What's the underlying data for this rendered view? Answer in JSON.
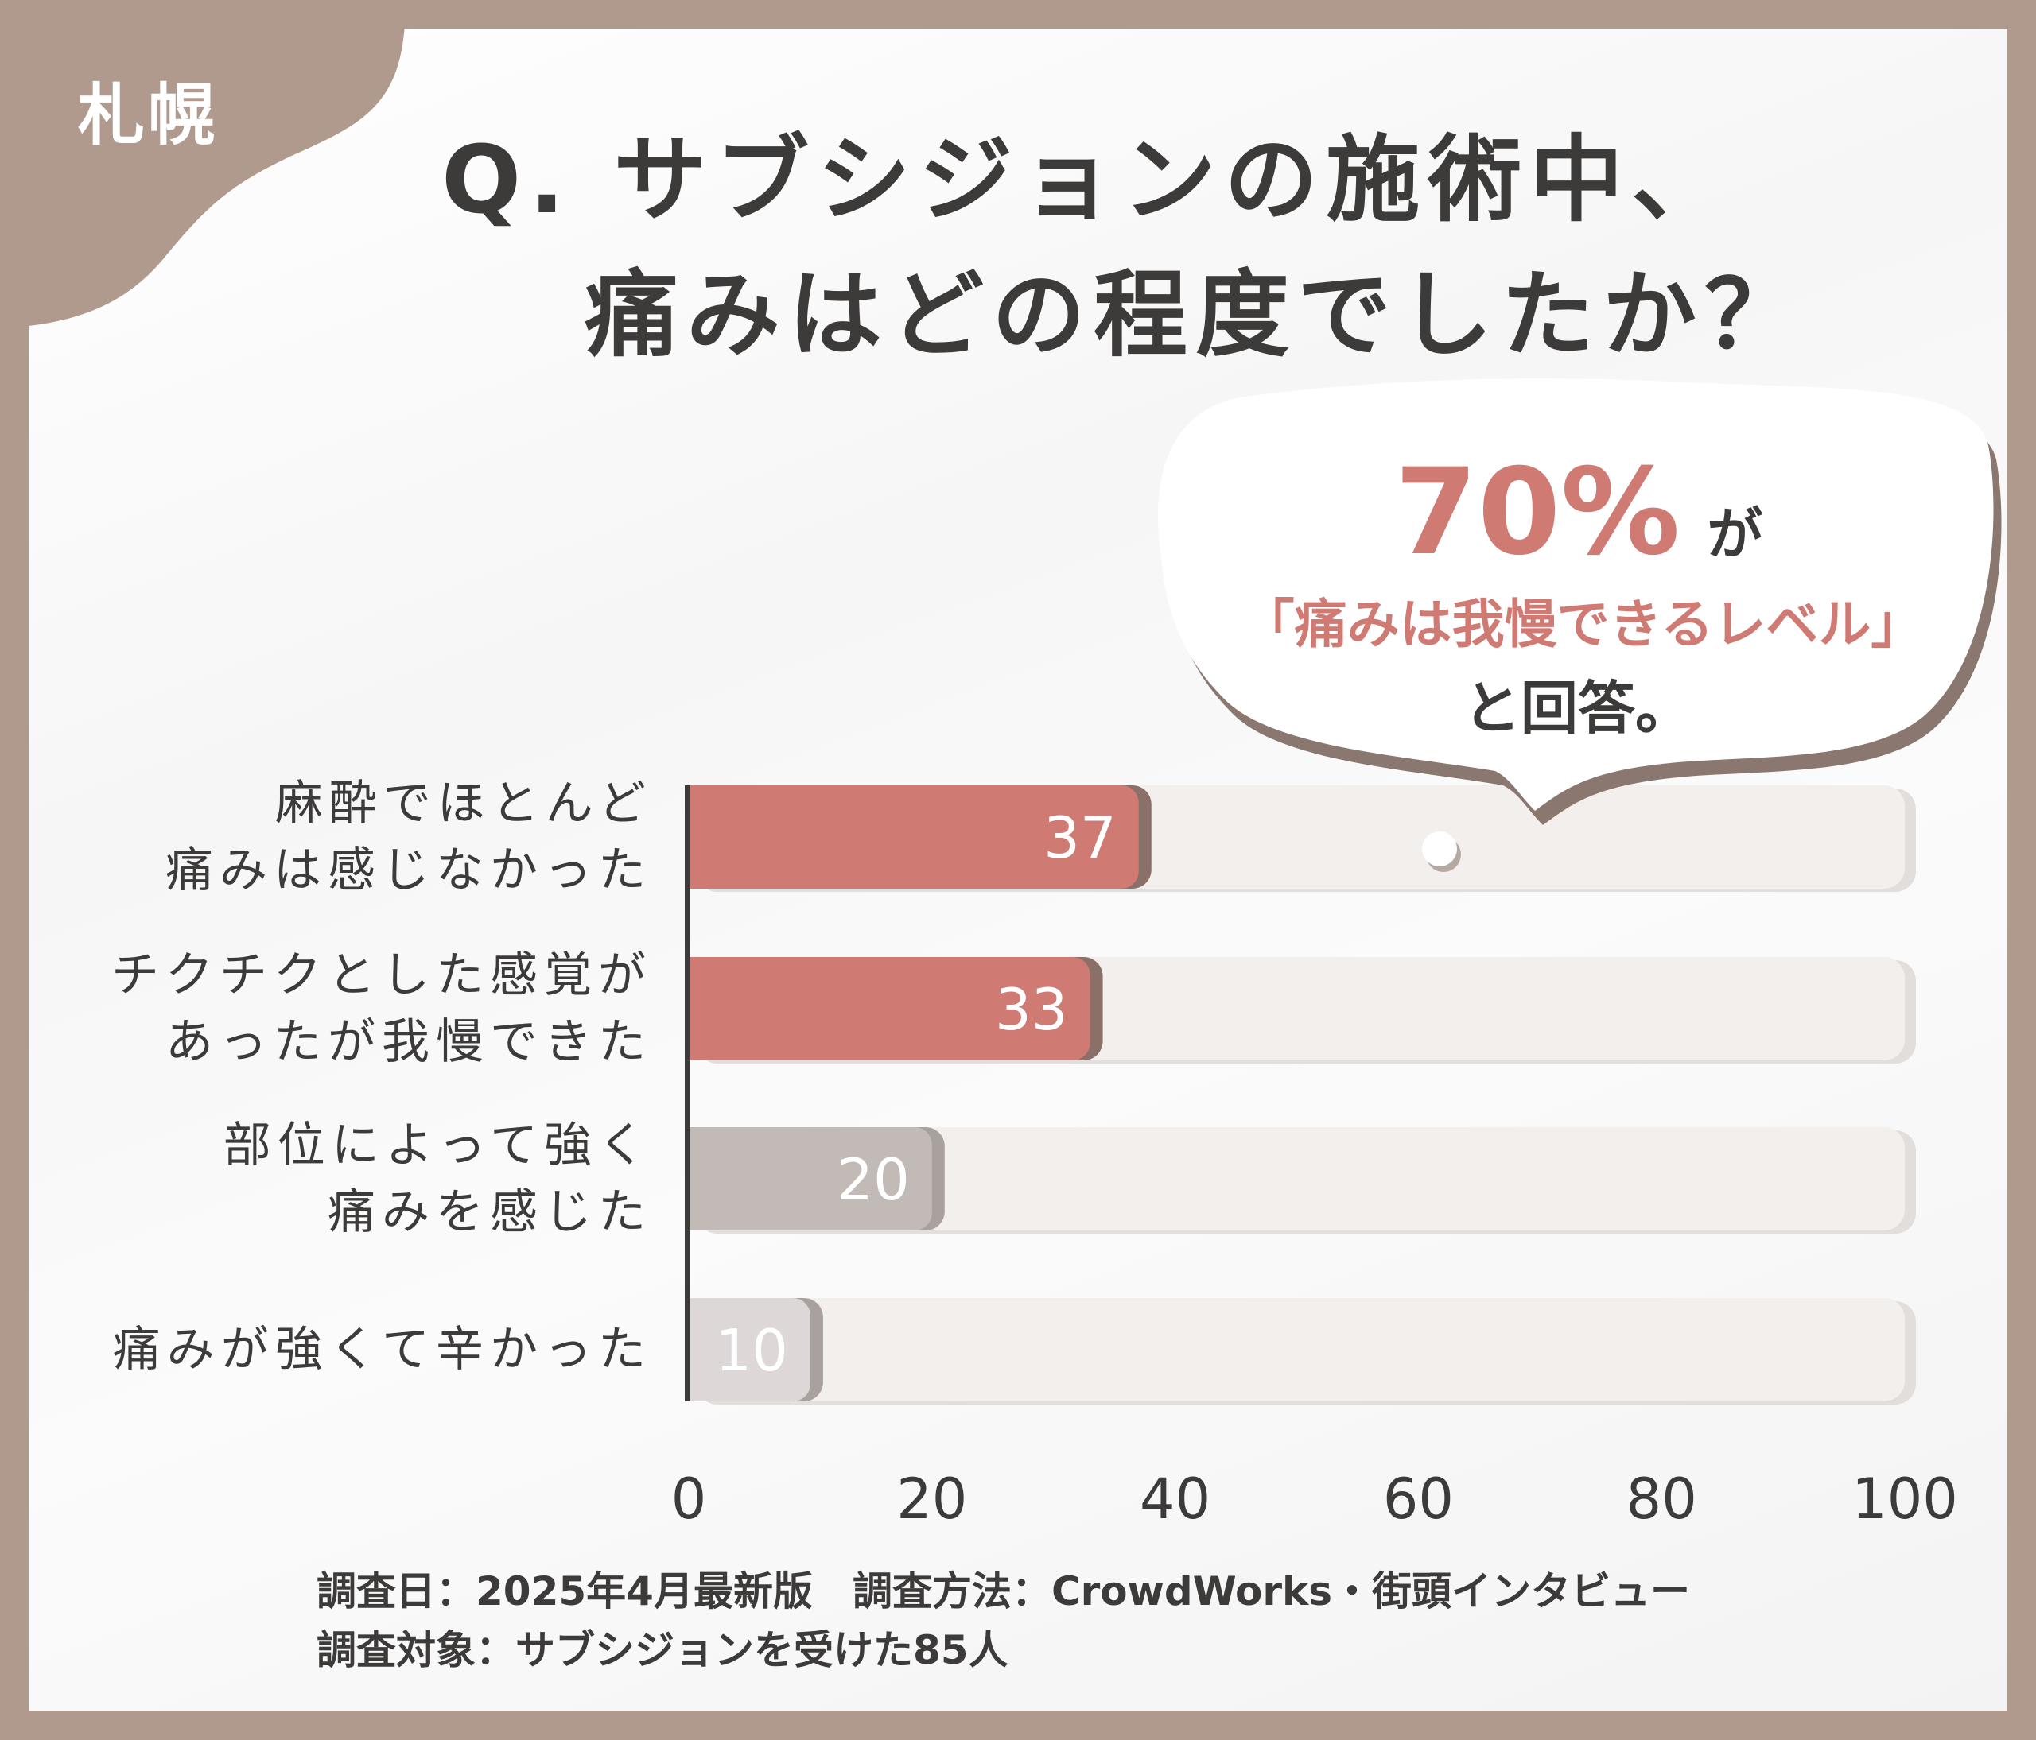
{
  "region_label": "札幌",
  "title": {
    "line1": "Q. サブシジョンの施術中、",
    "line2": "痛みはどの程度でしたか？"
  },
  "callout": {
    "percent": "70%",
    "particle": "が",
    "quote": "「痛みは我慢できるレベル」",
    "suffix": "と回答。"
  },
  "colors": {
    "frame": "#b09a8e",
    "accent_bar": "#d07a74",
    "bar_shadow": "#8a7068",
    "gray_bar": "#c2bab7",
    "light_bar": "#ddd8d7",
    "track": "#f2efec",
    "text": "#3d3a3a"
  },
  "chart_data": {
    "type": "bar",
    "orientation": "horizontal",
    "categories": [
      [
        "麻酔でほとんど",
        "痛みは感じなかった"
      ],
      [
        "チクチクとした感覚が",
        "あったが我慢できた"
      ],
      [
        "部位によって強く",
        "痛みを感じた"
      ],
      [
        "痛みが強くて辛かった"
      ]
    ],
    "values": [
      37,
      33,
      20,
      10
    ],
    "data_labels": [
      "37",
      "33",
      "20",
      "10"
    ],
    "bar_colors": [
      "#d07a74",
      "#d07a74",
      "#c2bab7",
      "#ddd8d7"
    ],
    "xlim": [
      0,
      100
    ],
    "xticks": [
      "0",
      "20",
      "40",
      "60",
      "80",
      "100"
    ],
    "grid": false
  },
  "footer": {
    "line1": "調査日：2025年4月最新版　調査方法：CrowdWorks・街頭インタビュー",
    "line2": "調査対象：サブシジョンを受けた85人"
  }
}
